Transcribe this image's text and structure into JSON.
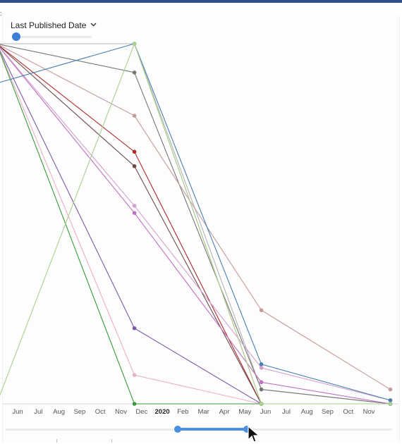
{
  "header": {
    "title": "Last Published Date",
    "dropdown_icon": "chevron-down-icon"
  },
  "chart_data": {
    "type": "line",
    "title": "",
    "xlabel": "",
    "ylabel": "",
    "x_ticks": [
      "Jun",
      "Jul",
      "Aug",
      "Sep",
      "Oct",
      "Nov",
      "Dec",
      "2020",
      "Feb",
      "Mar",
      "Apr",
      "May",
      "Jun",
      "Jul",
      "Aug",
      "Sep",
      "Oct",
      "Nov"
    ],
    "x": [
      "2019-05-01",
      "2019-11-20",
      "2020-05-25",
      "2020-12-01"
    ],
    "ylim": [
      0,
      100
    ],
    "series": [
      {
        "color": "#e8a098",
        "values": [
          100,
          100,
          0,
          0
        ]
      },
      {
        "color": "#b0b6b0",
        "values": [
          100,
          100,
          4,
          0
        ]
      },
      {
        "color": "#777777",
        "values": [
          100,
          92,
          4,
          0
        ]
      },
      {
        "color": "#c49a9a",
        "values": [
          100,
          80,
          26,
          4
        ]
      },
      {
        "color": "#b02a2a",
        "values": [
          100,
          70,
          0,
          0
        ]
      },
      {
        "color": "#6a4a4a",
        "values": [
          100,
          66,
          0,
          0
        ]
      },
      {
        "color": "#d0a0d0",
        "values": [
          100,
          55,
          10,
          1
        ]
      },
      {
        "color": "#c070c0",
        "values": [
          100,
          53,
          6,
          0
        ]
      },
      {
        "color": "#7a5aa8",
        "values": [
          100,
          21,
          0,
          0
        ]
      },
      {
        "color": "#e8b0c8",
        "values": [
          100,
          8,
          0,
          0
        ]
      },
      {
        "color": "#3a9a3a",
        "values": [
          100,
          0,
          0,
          0
        ]
      },
      {
        "color": "#4a7fb0",
        "values": [
          89,
          100,
          11,
          1
        ]
      },
      {
        "color": "#a8d090",
        "values": [
          0,
          100,
          0,
          0
        ]
      }
    ]
  },
  "range_slider": {
    "start": "2019-11",
    "end": "2020-05"
  },
  "colors": {
    "accent": "#4a90e2",
    "header_bar": "#2c4f86"
  }
}
